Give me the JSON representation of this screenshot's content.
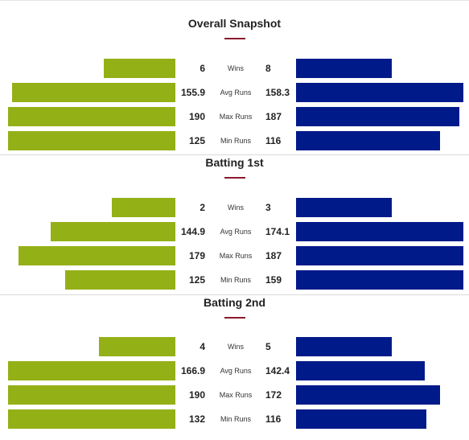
{
  "colors": {
    "team1": "#94b017",
    "team2": "#001a8a",
    "accent": "#8b1a2b"
  },
  "chart_data": [
    {
      "type": "bar",
      "title": "Overall Snapshot",
      "categories": [
        "Wins",
        "Avg Runs",
        "Max Runs",
        "Min Runs"
      ],
      "series": [
        {
          "values": [
            "6",
            "155.9",
            "190",
            "125"
          ]
        },
        {
          "values": [
            "8",
            "158.3",
            "187",
            "116"
          ]
        }
      ]
    },
    {
      "type": "bar",
      "title": "Batting 1st",
      "categories": [
        "Wins",
        "Avg Runs",
        "Max Runs",
        "Min Runs"
      ],
      "series": [
        {
          "values": [
            "2",
            "144.9",
            "179",
            "125"
          ]
        },
        {
          "values": [
            "3",
            "174.1",
            "187",
            "159"
          ]
        }
      ]
    },
    {
      "type": "bar",
      "title": "Batting 2nd",
      "categories": [
        "Wins",
        "Avg Runs",
        "Max Runs",
        "Min Runs"
      ],
      "series": [
        {
          "values": [
            "4",
            "166.9",
            "190",
            "132"
          ]
        },
        {
          "values": [
            "5",
            "142.4",
            "172",
            "116"
          ]
        }
      ]
    }
  ]
}
